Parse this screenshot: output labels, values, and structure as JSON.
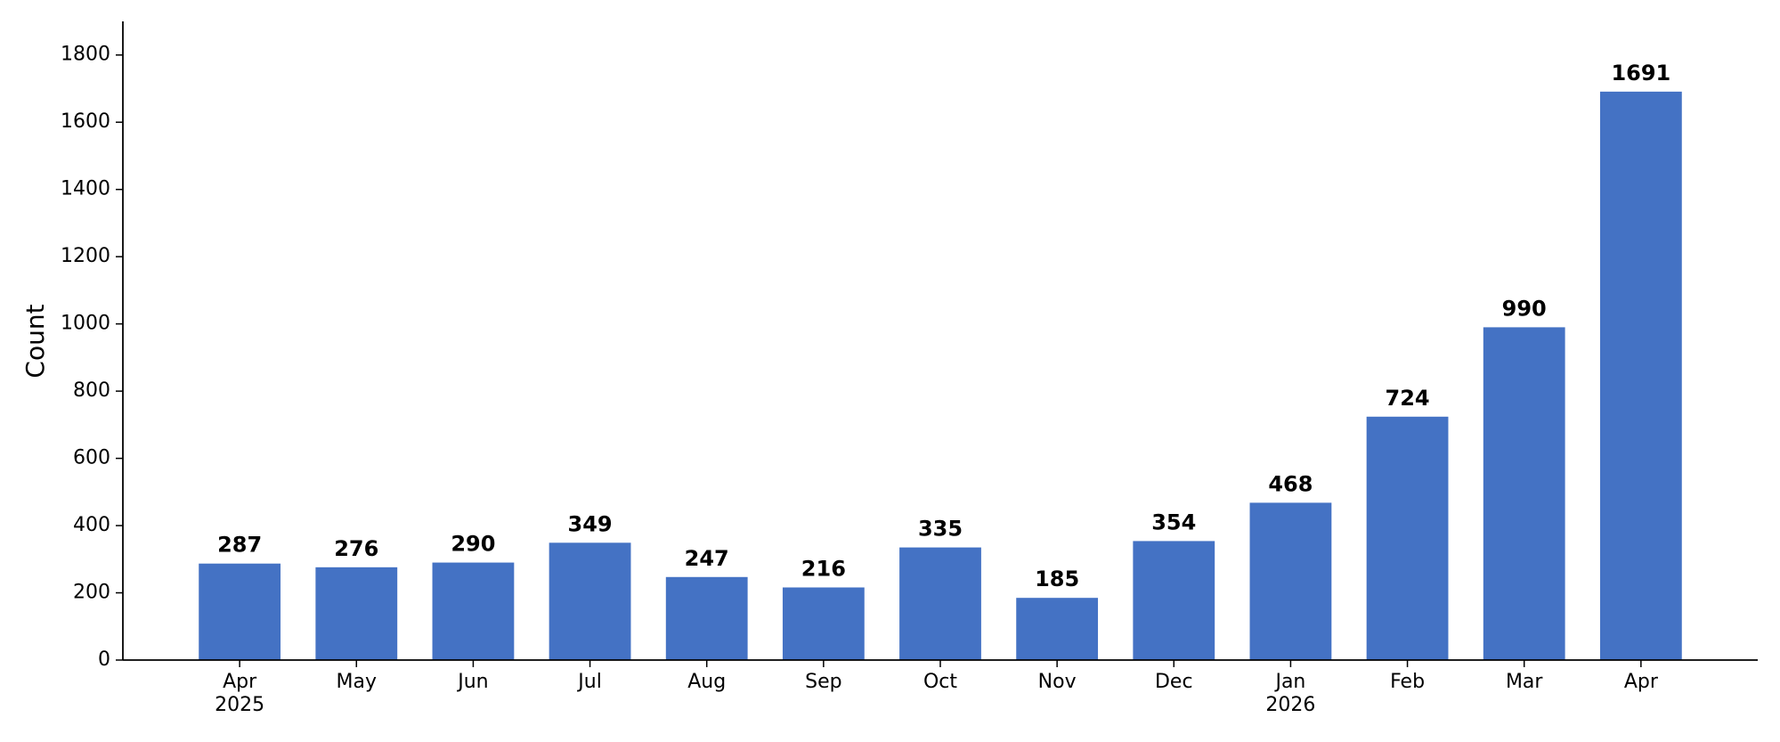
{
  "chart_data": {
    "type": "bar",
    "y_label": "Count",
    "categories": [
      "Apr\n2025",
      "May",
      "Jun",
      "Jul",
      "Aug",
      "Sep",
      "Oct",
      "Nov",
      "Dec",
      "Jan\n2026",
      "Feb",
      "Mar",
      "Apr"
    ],
    "values": [
      287,
      276,
      290,
      349,
      247,
      216,
      335,
      185,
      354,
      468,
      724,
      990,
      1691
    ],
    "color": "#4472c4",
    "ylim": [
      0,
      1900
    ],
    "yticks": [
      0,
      200,
      400,
      600,
      800,
      1000,
      1200,
      1400,
      1600,
      1800
    ]
  }
}
